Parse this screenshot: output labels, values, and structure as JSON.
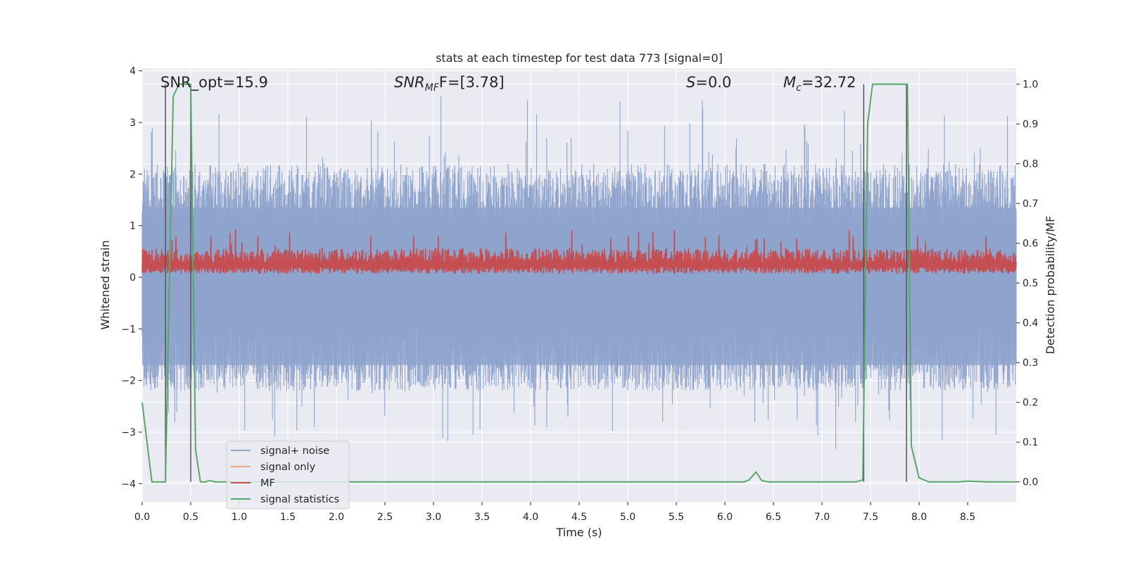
{
  "chart_data": {
    "type": "line",
    "title": "stats at each timestep for test data 773 [signal=0]",
    "xlabel": "Time (s)",
    "ylabel": "Whitened strain",
    "ylabel_right": "Detection probability/MF",
    "xlim": [
      0.0,
      9.0
    ],
    "ylim": [
      -4.35,
      4.05
    ],
    "ylim_right": [
      -0.05,
      1.04
    ],
    "x_ticks": [
      "0.0",
      "0.5",
      "1.0",
      "1.5",
      "2.0",
      "2.5",
      "3.0",
      "3.5",
      "4.0",
      "4.5",
      "5.0",
      "5.5",
      "6.0",
      "6.5",
      "7.0",
      "7.5",
      "8.0",
      "8.5"
    ],
    "y_ticks": [
      "4",
      "3",
      "2",
      "1",
      "0",
      "−1",
      "−2",
      "−3",
      "−4"
    ],
    "y_ticks_right": [
      "1.0",
      "0.9",
      "0.8",
      "0.7",
      "0.6",
      "0.5",
      "0.4",
      "0.3",
      "0.2",
      "0.1",
      "0.0"
    ],
    "annotations": {
      "snr_opt": "SNR_opt=15.9",
      "snr_mf_sym": "SNR",
      "snr_mf_sub": "MF",
      "snr_mf_val": "F=[3.78]",
      "s_sym": "S",
      "s_val": "=0.0",
      "mc_sym": "M",
      "mc_sub": "c",
      "mc_val": "=32.72"
    },
    "legend": [
      "signal+ noise",
      "signal only",
      "MF",
      "signal statistics"
    ],
    "colors": {
      "signal_noise": "#8fa4cc",
      "signal_only": "#e9a98a",
      "mf": "#c44e52",
      "statistics": "#55a868",
      "background": "#eaeaf2",
      "vline": "#555555"
    },
    "series": [
      {
        "name": "signal+ noise",
        "kind": "noise",
        "mean": -0.35,
        "upper_typ": 2.2,
        "upper_max": 3.7,
        "lower_typ": -2.2,
        "lower_min": -3.5
      },
      {
        "name": "MF",
        "kind": "noise",
        "mean": 0.3,
        "upper_typ": 0.55,
        "upper_max": 0.95,
        "lower_typ": 0.08,
        "lower_min": 0.05
      },
      {
        "name": "signal statistics",
        "axis": "right",
        "x": [
          0.0,
          0.05,
          0.1,
          0.18,
          0.24,
          0.28,
          0.32,
          0.38,
          0.45,
          0.5,
          0.55,
          0.6,
          0.65,
          0.7,
          0.75,
          0.8,
          0.9,
          1.0,
          6.2,
          6.25,
          6.32,
          6.38,
          6.45,
          7.35,
          7.42,
          7.47,
          7.52,
          7.6,
          7.8,
          7.88,
          7.92,
          8.0,
          8.1,
          8.4,
          8.5,
          8.7,
          9.0
        ],
        "y": [
          0.2,
          0.1,
          0.0,
          0.0,
          0.0,
          0.5,
          0.97,
          1.0,
          1.0,
          1.0,
          0.08,
          0.0,
          0.0,
          0.003,
          0.0,
          0.0,
          0.0,
          0.0,
          0.0,
          0.005,
          0.025,
          0.003,
          0.0,
          0.0,
          0.005,
          0.9,
          1.0,
          1.0,
          1.0,
          1.0,
          0.09,
          0.01,
          0.0,
          0.0,
          0.002,
          0.0,
          0.0
        ]
      }
    ],
    "vlines_x": [
      0.24,
      0.5,
      7.43,
      7.87
    ]
  }
}
